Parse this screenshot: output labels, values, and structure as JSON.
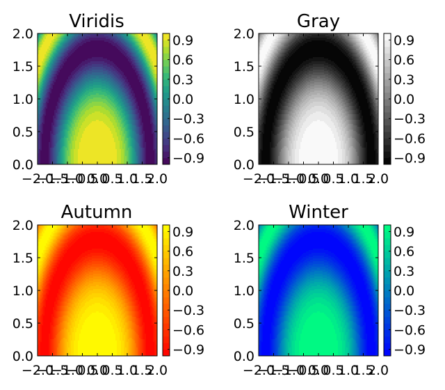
{
  "chart_data": [
    {
      "type": "heatmap",
      "title": "Viridis",
      "colormap": "viridis",
      "function": "cos(x^2 + y^2)",
      "xlim": [
        -2.0,
        2.0
      ],
      "ylim": [
        0.0,
        2.0
      ],
      "x_ticks": [
        "−2.0",
        "−1.5",
        "−1.0",
        "−0.5",
        "0.0",
        "0.5",
        "1.0",
        "1.5",
        "2.0"
      ],
      "y_ticks": [
        "0.0",
        "0.5",
        "1.0",
        "1.5",
        "2.0"
      ],
      "colorbar_ticks": [
        "−0.9",
        "−0.6",
        "−0.3",
        "0.0",
        "0.3",
        "0.6",
        "0.9"
      ],
      "colorbar_range": [
        -1.0,
        1.0
      ],
      "contour_levels": 20
    },
    {
      "type": "heatmap",
      "title": "Gray",
      "colormap": "gray",
      "function": "cos(x^2 + y^2)",
      "xlim": [
        -2.0,
        2.0
      ],
      "ylim": [
        0.0,
        2.0
      ],
      "x_ticks": [
        "−2.0",
        "−1.5",
        "−1.0",
        "−0.5",
        "0.0",
        "0.5",
        "1.0",
        "1.5",
        "2.0"
      ],
      "y_ticks": [
        "0.0",
        "0.5",
        "1.0",
        "1.5",
        "2.0"
      ],
      "colorbar_ticks": [
        "−0.9",
        "−0.6",
        "−0.3",
        "0.0",
        "0.3",
        "0.6",
        "0.9"
      ],
      "colorbar_range": [
        -1.0,
        1.0
      ],
      "contour_levels": 20
    },
    {
      "type": "heatmap",
      "title": "Autumn",
      "colormap": "autumn",
      "function": "cos(x^2 + y^2)",
      "xlim": [
        -2.0,
        2.0
      ],
      "ylim": [
        0.0,
        2.0
      ],
      "x_ticks": [
        "−2.0",
        "−1.5",
        "−1.0",
        "−0.5",
        "0.0",
        "0.5",
        "1.0",
        "1.5",
        "2.0"
      ],
      "y_ticks": [
        "0.0",
        "0.5",
        "1.0",
        "1.5",
        "2.0"
      ],
      "colorbar_ticks": [
        "−0.9",
        "−0.6",
        "−0.3",
        "0.0",
        "0.3",
        "0.6",
        "0.9"
      ],
      "colorbar_range": [
        -1.0,
        1.0
      ],
      "contour_levels": 20
    },
    {
      "type": "heatmap",
      "title": "Winter",
      "colormap": "winter",
      "function": "cos(x^2 + y^2)",
      "xlim": [
        -2.0,
        2.0
      ],
      "ylim": [
        0.0,
        2.0
      ],
      "x_ticks": [
        "−2.0",
        "−1.5",
        "−1.0",
        "−0.5",
        "0.0",
        "0.5",
        "1.0",
        "1.5",
        "2.0"
      ],
      "y_ticks": [
        "0.0",
        "0.5",
        "1.0",
        "1.5",
        "2.0"
      ],
      "colorbar_ticks": [
        "−0.9",
        "−0.6",
        "−0.3",
        "0.0",
        "0.3",
        "0.6",
        "0.9"
      ],
      "colorbar_range": [
        -1.0,
        1.0
      ],
      "contour_levels": 20
    }
  ],
  "colormaps": {
    "viridis": [
      "#440154",
      "#482878",
      "#3e4989",
      "#31688e",
      "#26828e",
      "#1f9e89",
      "#35b779",
      "#6ece58",
      "#b5de2b",
      "#fde725"
    ],
    "gray": [
      "#000000",
      "#ffffff"
    ],
    "autumn": [
      "#ff0000",
      "#ffff00"
    ],
    "winter": [
      "#0000ff",
      "#00ff80"
    ]
  }
}
